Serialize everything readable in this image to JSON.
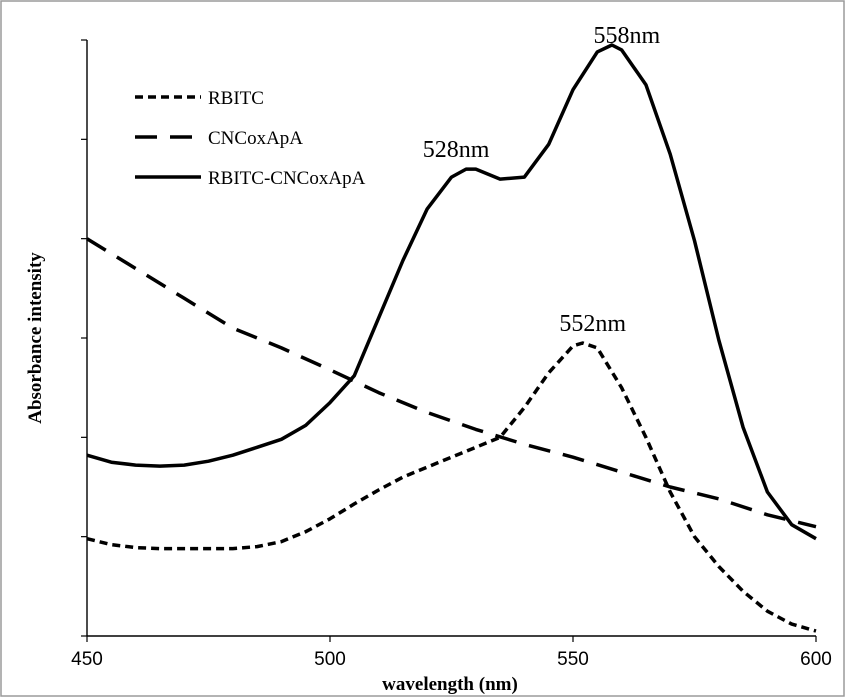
{
  "chart_data": {
    "type": "line",
    "title": "",
    "xlabel": "wavelength (nm)",
    "ylabel": "Absorbance intensity",
    "xlim": [
      450,
      600
    ],
    "ylim": [
      0,
      6
    ],
    "xticks": [
      450,
      500,
      550,
      600
    ],
    "x_tick_labels": [
      "450",
      "500",
      "550",
      "600"
    ],
    "yticks": [
      0,
      1,
      2,
      3,
      4,
      5,
      6
    ],
    "y_tick_labels_shown": false,
    "grid": false,
    "legend_position": "top-left",
    "series": [
      {
        "name": "RBITC",
        "line_style": "dotted",
        "color": "#000000",
        "x": [
          450,
          455,
          460,
          465,
          470,
          475,
          480,
          485,
          490,
          495,
          500,
          505,
          510,
          515,
          520,
          525,
          530,
          535,
          540,
          545,
          550,
          552,
          555,
          560,
          565,
          570,
          575,
          580,
          585,
          590,
          595,
          600
        ],
        "y": [
          0.98,
          0.92,
          0.89,
          0.88,
          0.88,
          0.88,
          0.88,
          0.9,
          0.95,
          1.05,
          1.18,
          1.33,
          1.47,
          1.6,
          1.7,
          1.8,
          1.9,
          2.0,
          2.3,
          2.65,
          2.92,
          2.95,
          2.9,
          2.5,
          2.0,
          1.45,
          1.0,
          0.7,
          0.45,
          0.25,
          0.12,
          0.05
        ]
      },
      {
        "name": "CNCoxApA",
        "line_style": "dashed",
        "color": "#000000",
        "x": [
          450,
          460,
          470,
          480,
          490,
          500,
          510,
          520,
          530,
          540,
          550,
          560,
          570,
          580,
          590,
          600
        ],
        "y": [
          4.0,
          3.7,
          3.4,
          3.1,
          2.9,
          2.68,
          2.45,
          2.25,
          2.08,
          1.93,
          1.8,
          1.65,
          1.5,
          1.38,
          1.22,
          1.1
        ]
      },
      {
        "name": "RBITC-CNCoxApA",
        "line_style": "solid",
        "color": "#000000",
        "x": [
          450,
          455,
          460,
          465,
          470,
          475,
          480,
          485,
          490,
          495,
          500,
          505,
          510,
          515,
          520,
          525,
          528,
          530,
          535,
          540,
          545,
          550,
          555,
          558,
          560,
          565,
          570,
          575,
          580,
          585,
          590,
          595,
          600
        ],
        "y": [
          1.82,
          1.75,
          1.72,
          1.71,
          1.72,
          1.76,
          1.82,
          1.9,
          1.98,
          2.12,
          2.35,
          2.62,
          3.2,
          3.78,
          4.3,
          4.62,
          4.7,
          4.7,
          4.6,
          4.62,
          4.95,
          5.5,
          5.88,
          5.95,
          5.9,
          5.55,
          4.85,
          3.98,
          2.98,
          2.1,
          1.45,
          1.12,
          0.98
        ]
      }
    ],
    "annotations": [
      {
        "text": "558nm",
        "x": 558,
        "y": 5.95
      },
      {
        "text": "528nm",
        "x": 528,
        "y": 4.7
      },
      {
        "text": "552nm",
        "x": 552,
        "y": 2.95
      }
    ]
  }
}
